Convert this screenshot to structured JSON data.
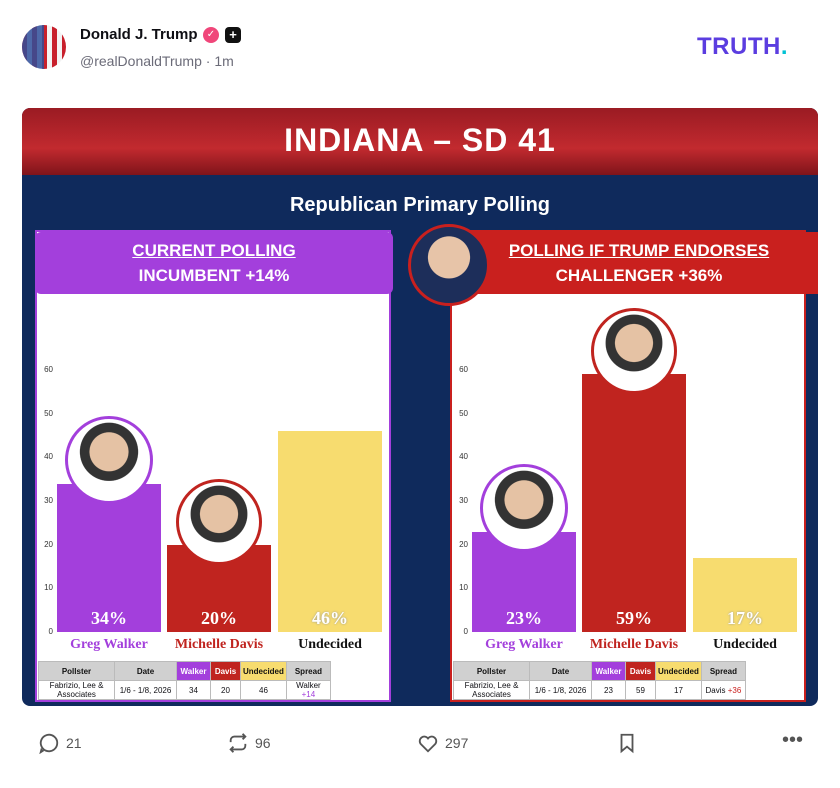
{
  "post": {
    "author": "Donald J. Trump",
    "handle": "@realDonaldTrump",
    "time": "1m",
    "logo": "TRUTH.",
    "colors": {
      "brand": "#5b3de0",
      "verified": "#f0467a"
    }
  },
  "graphic": {
    "title": "INDIANA – SD 41",
    "subtitle": "Republican Primary Polling",
    "panels": [
      {
        "heading": "CURRENT POLLING",
        "subheading": "INCUMBENT +14%",
        "color": "#a33fdc",
        "candidates": [
          {
            "name": "Greg Walker",
            "value": 34,
            "label": "34%",
            "color": "#a33fdc"
          },
          {
            "name": "Michelle Davis",
            "value": 20,
            "label": "20%",
            "color": "#c0241f"
          },
          {
            "name": "Undecided",
            "value": 46,
            "label": "46%",
            "color": "#f7dc6f"
          }
        ],
        "table": {
          "headers": [
            "Pollster",
            "Date",
            "Walker",
            "Davis",
            "Undecided",
            "Spread"
          ],
          "row": [
            "Fabrizio, Lee & Associates",
            "1/6 - 1/8, 2026",
            "34",
            "20",
            "46"
          ],
          "spread_name": "Walker",
          "spread_value": "+14"
        }
      },
      {
        "heading": "POLLING IF TRUMP ENDORSES",
        "subheading": "CHALLENGER +36%",
        "color": "#c9201e",
        "candidates": [
          {
            "name": "Greg Walker",
            "value": 23,
            "label": "23%",
            "color": "#a33fdc"
          },
          {
            "name": "Michelle Davis",
            "value": 59,
            "label": "59%",
            "color": "#c0241f"
          },
          {
            "name": "Undecided",
            "value": 17,
            "label": "17%",
            "color": "#f7dc6f"
          }
        ],
        "table": {
          "headers": [
            "Pollster",
            "Date",
            "Walker",
            "Davis",
            "Undecided",
            "Spread"
          ],
          "row": [
            "Fabrizio, Lee & Associates",
            "1/6 - 1/8, 2026",
            "23",
            "59",
            "17"
          ],
          "spread_name": "Davis",
          "spread_value": "+36"
        }
      }
    ],
    "y_ticks": [
      "0",
      "10",
      "20",
      "30",
      "40",
      "50",
      "60"
    ],
    "ylim": [
      0,
      60
    ]
  },
  "actions": {
    "replies": "21",
    "reposts": "96",
    "likes": "297"
  }
}
